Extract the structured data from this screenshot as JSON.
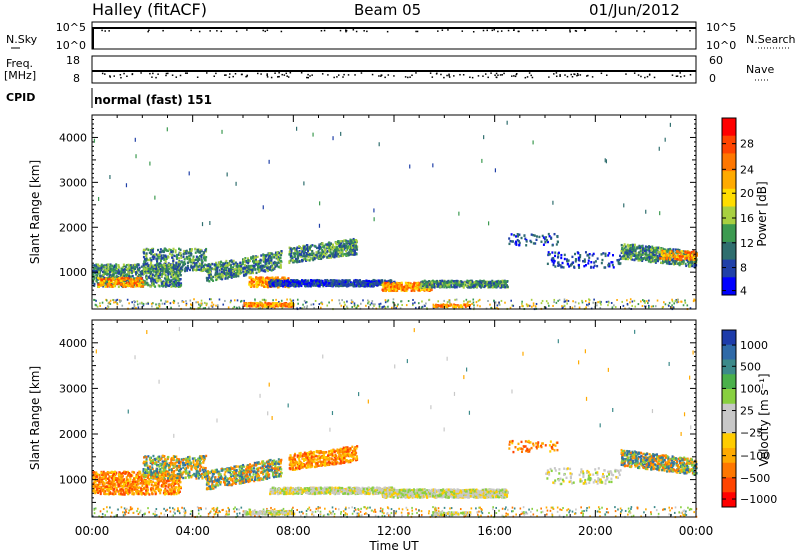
{
  "header": {
    "title": "Halley (fitACF)",
    "beam": "Beam 05",
    "date": "01/Jun/2012"
  },
  "status_panels": {
    "nsky": {
      "left_label": "N.Sky",
      "left_ticks": [
        "10^5",
        "10^0"
      ],
      "right_label": "N.Search",
      "right_ticks": [
        "10^5",
        "10^0"
      ]
    },
    "freq": {
      "left_label_top": "Freq.",
      "left_label_unit": "[MHz]",
      "left_ticks": [
        "18",
        "8"
      ],
      "right_label": "Nave",
      "right_ticks": [
        "60",
        "0"
      ]
    },
    "cpid": {
      "label": "CPID",
      "value": "normal (fast) 151"
    }
  },
  "chart_data": [
    {
      "type": "heatmap",
      "name": "power-panel",
      "ylabel": "Slant Range [km]",
      "xlabel": "Time UT",
      "xlim_hours": [
        0,
        24
      ],
      "ylim_km": [
        180,
        4500
      ],
      "yticks": [
        1000,
        2000,
        3000,
        4000
      ],
      "xticks": [
        "00:00",
        "04:00",
        "08:00",
        "12:00",
        "16:00",
        "20:00",
        "00:00"
      ],
      "colorbar_label": "Power [dB]",
      "colorbar_ticks": [
        "28",
        "24",
        "20",
        "16",
        "12",
        "8",
        "4"
      ],
      "colorbar_colors": [
        "#ff0000",
        "#ff4400",
        "#ff7700",
        "#ffaa00",
        "#ffdd00",
        "#a8d040",
        "#3c9a50",
        "#2f6e6e",
        "#2040a8",
        "#0000ff"
      ]
    },
    {
      "type": "heatmap",
      "name": "velocity-panel",
      "ylabel": "Slant Range [km]",
      "xlabel": "Time UT",
      "xlim_hours": [
        0,
        24
      ],
      "ylim_km": [
        180,
        4500
      ],
      "yticks": [
        1000,
        2000,
        3000,
        4000
      ],
      "xticks": [
        "00:00",
        "04:00",
        "08:00",
        "12:00",
        "16:00",
        "20:00",
        "00:00"
      ],
      "colorbar_label": "Velocity [m s⁻¹]",
      "colorbar_ticks": [
        "1000",
        "500",
        "100",
        "25",
        "−25",
        "−100",
        "−500",
        "−1000"
      ],
      "colorbar_colors": [
        "#1e3caa",
        "#2f6aa8",
        "#3c8a8a",
        "#4ab04a",
        "#88d040",
        "#c8c8c8",
        "#c8c8c8",
        "#ffcc00",
        "#ffaa00",
        "#ff7700",
        "#ff4400",
        "#ff0000"
      ]
    }
  ],
  "x_axis": {
    "ticks": [
      "00:00",
      "04:00",
      "08:00",
      "12:00",
      "16:00",
      "20:00",
      "00:00"
    ],
    "label": "Time UT"
  }
}
